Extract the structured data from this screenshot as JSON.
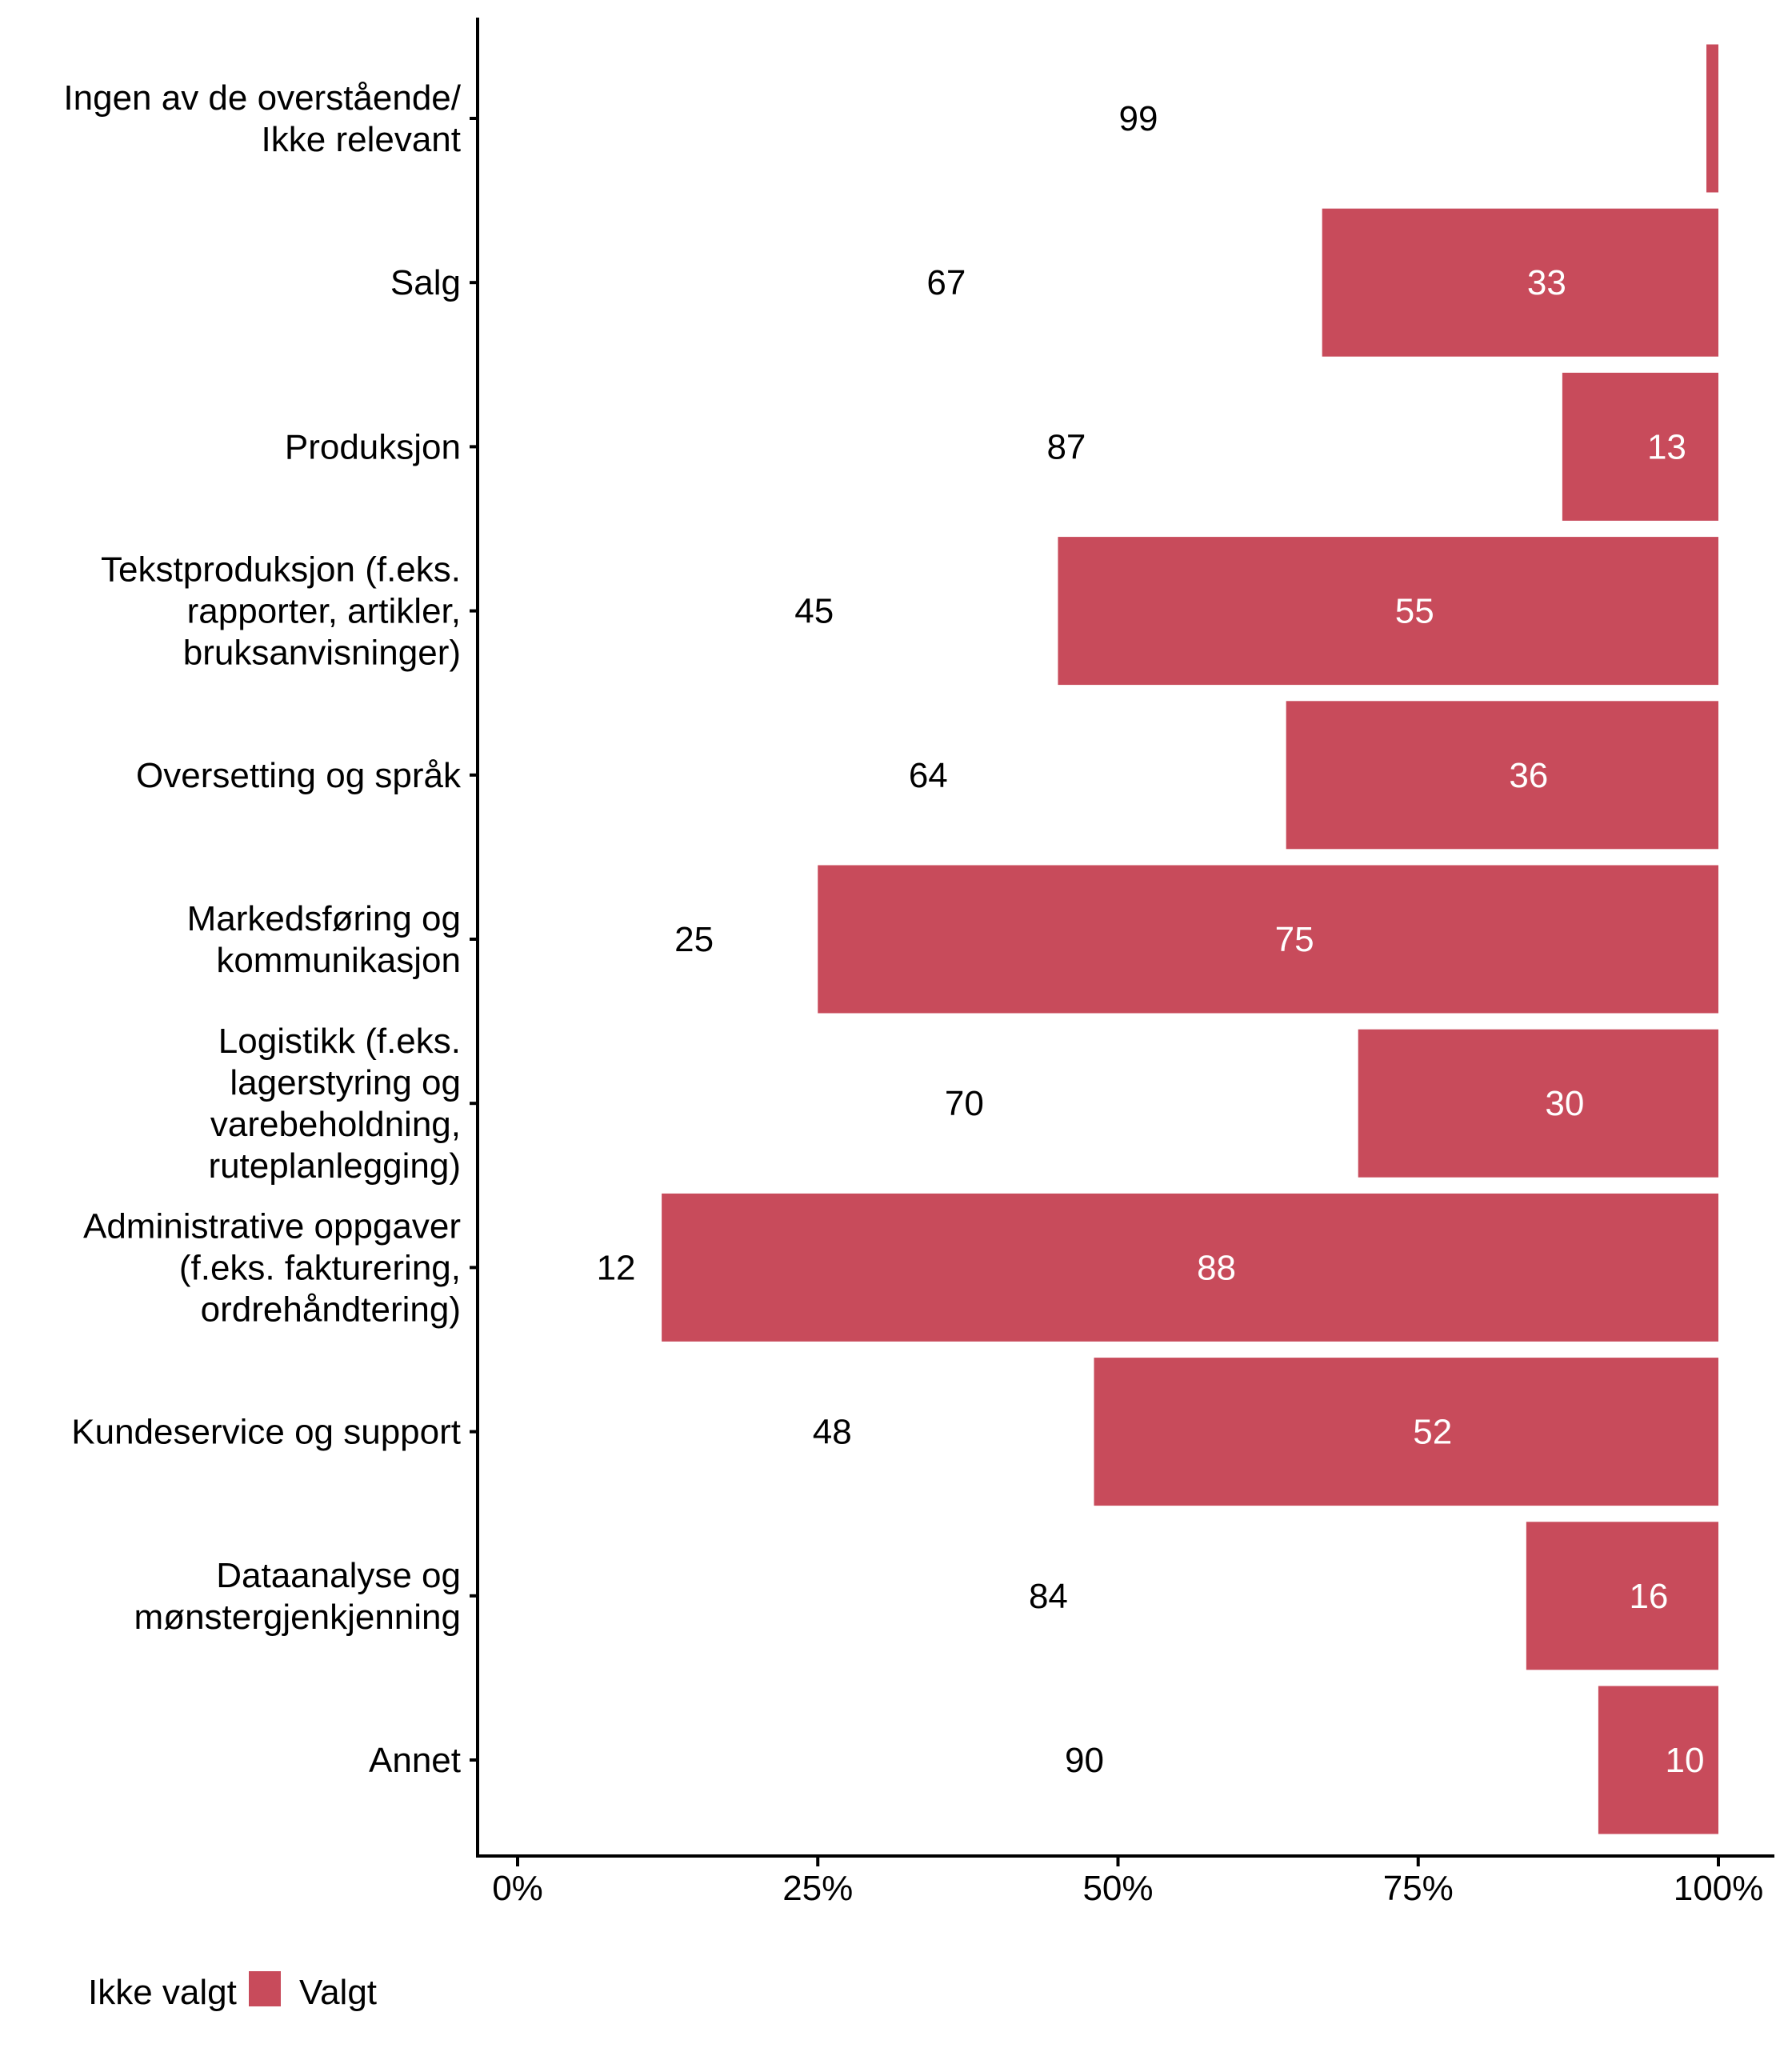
{
  "chart_data": {
    "type": "bar",
    "orientation": "horizontal",
    "stacked": true,
    "percent": true,
    "title": "",
    "xlabel": "",
    "ylabel": "",
    "xlim": [
      0,
      100
    ],
    "x_ticks": [
      "0%",
      "25%",
      "50%",
      "75%",
      "100%"
    ],
    "x_tick_values": [
      0,
      25,
      50,
      75,
      100
    ],
    "grid": false,
    "legend_position": "bottom-left",
    "categories": [
      [
        "Ingen av de overstående/",
        "Ikke relevant"
      ],
      [
        "Salg"
      ],
      [
        "Produksjon"
      ],
      [
        "Tekstproduksjon (f.eks.",
        "rapporter, artikler,",
        "bruksanvisninger)"
      ],
      [
        "Oversetting og språk"
      ],
      [
        "Markedsføring og",
        "kommunikasjon"
      ],
      [
        "Logistikk (f.eks.",
        "lagerstyring og",
        "varebeholdning,",
        "ruteplanlegging)"
      ],
      [
        "Administrative oppgaver",
        "(f.eks. fakturering,",
        "ordrehåndtering)"
      ],
      [
        "Kundeservice og support"
      ],
      [
        "Dataanalyse og",
        "mønstergjenkjenning"
      ],
      [
        "Annet"
      ]
    ],
    "series": [
      {
        "name": "Ikke valgt",
        "color": "#ffffff",
        "label_color": "#000000",
        "values": [
          99,
          67,
          87,
          45,
          64,
          25,
          70,
          12,
          48,
          84,
          90
        ]
      },
      {
        "name": "Valgt",
        "color": "#C84B5B",
        "label_color": "#ffffff",
        "values": [
          1,
          33,
          13,
          55,
          36,
          75,
          30,
          88,
          52,
          16,
          10
        ]
      }
    ]
  },
  "legend": {
    "items": [
      {
        "label": "Ikke valgt",
        "color": "#ffffff"
      },
      {
        "label": "Valgt",
        "color": "#C84B5B"
      }
    ]
  }
}
